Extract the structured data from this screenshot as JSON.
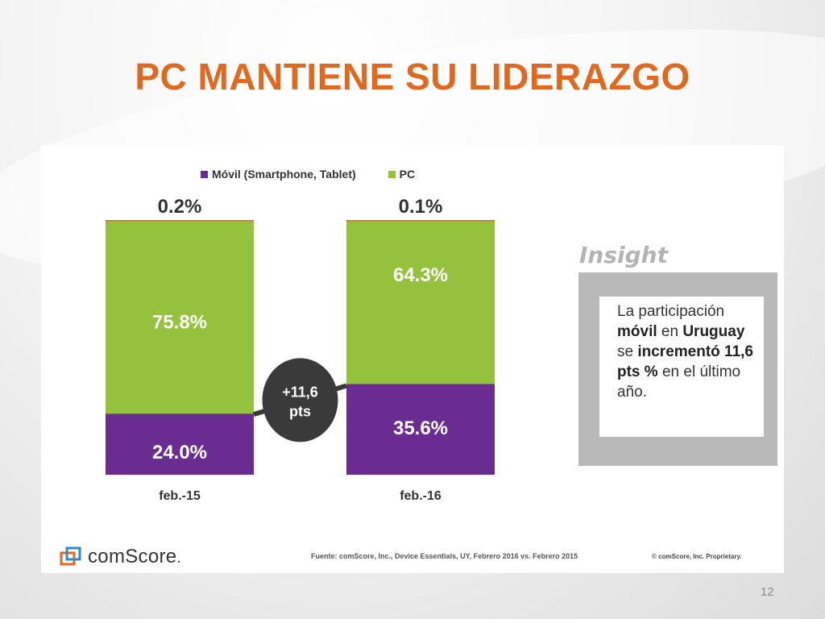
{
  "slide": {
    "title": "PC MANTIENE SU LIDERAZGO",
    "page_number": "12"
  },
  "chart_data": {
    "type": "bar",
    "stacked": true,
    "categories": [
      "feb.-15",
      "feb.-16"
    ],
    "series": [
      {
        "name": "Móvil (Smartphone, Tablet)",
        "values": [
          24.0,
          35.6
        ],
        "labels": [
          "24.0%",
          "35.6%"
        ],
        "color": "#6a2c91"
      },
      {
        "name": "PC",
        "values": [
          75.8,
          64.3
        ],
        "labels": [
          "75.8%",
          "64.3%"
        ],
        "color": "#95c23d"
      },
      {
        "name": "",
        "values": [
          0.2,
          0.1
        ],
        "labels": [
          "0.2%",
          "0.1%"
        ],
        "color": "#e0681f"
      }
    ],
    "change_badge": {
      "line1": "+11,6",
      "line2": "pts"
    },
    "ylim": [
      0,
      100
    ],
    "legend_position": "top"
  },
  "insight": {
    "heading": "Insight",
    "parts": [
      {
        "text": "La participación ",
        "bold": false
      },
      {
        "text": "móvil",
        "bold": true
      },
      {
        "text": " en ",
        "bold": false
      },
      {
        "text": "Uruguay",
        "bold": true
      },
      {
        "text": " se ",
        "bold": false
      },
      {
        "text": "incrementó 11,6 pts %",
        "bold": true
      },
      {
        "text": " en el último año.",
        "bold": false
      }
    ]
  },
  "footer": {
    "logo_text": "comScore",
    "logo_suffix": ".",
    "source": "Fuente: comScore, Inc., Device Essentials, UY, Febrero 2016 vs. Febrero 2015",
    "copyright": "© comScore, Inc. Proprietary."
  },
  "colors": {
    "title": "#e0681f",
    "mobile": "#6a2c91",
    "pc": "#95c23d",
    "badge": "#3a3a3a"
  }
}
